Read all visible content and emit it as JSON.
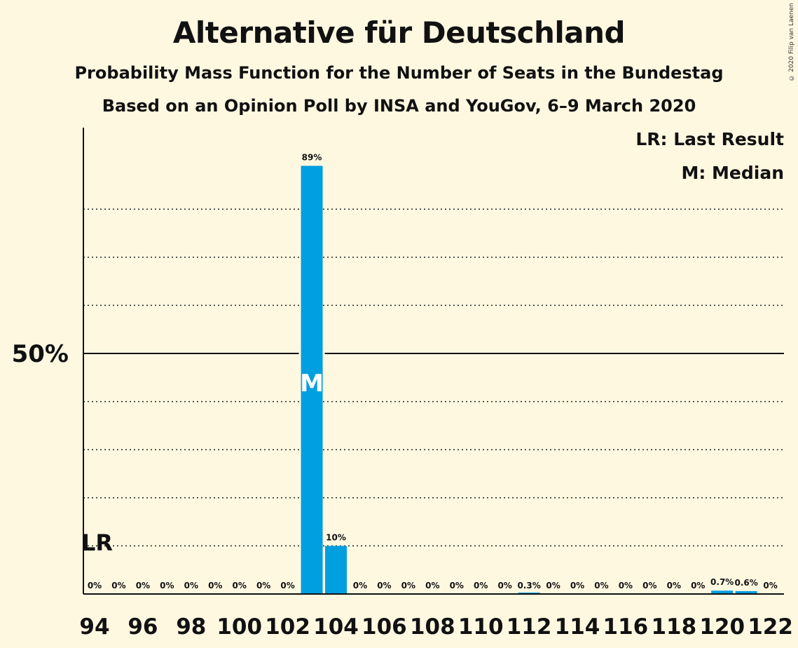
{
  "header": {
    "title": "Alternative für Deutschland",
    "subtitle1": "Probability Mass Function for the Number of Seats in the Bundestag",
    "subtitle2": "Based on an Opinion Poll by INSA and YouGov, 6–9 March 2020",
    "copyright": "© 2020 Filip van Laenen"
  },
  "legend": {
    "lr": "LR: Last Result",
    "median": "M: Median"
  },
  "chart_data": {
    "type": "bar",
    "x": [
      94,
      95,
      96,
      97,
      98,
      99,
      100,
      101,
      102,
      103,
      104,
      105,
      106,
      107,
      108,
      109,
      110,
      111,
      112,
      113,
      114,
      115,
      116,
      117,
      118,
      119,
      120,
      121,
      122
    ],
    "values": [
      0,
      0,
      0,
      0,
      0,
      0,
      0,
      0,
      0,
      89,
      10,
      0,
      0,
      0,
      0,
      0,
      0,
      0,
      0.3,
      0,
      0,
      0,
      0,
      0,
      0,
      0,
      0.7,
      0.6,
      0
    ],
    "labels": [
      "0%",
      "0%",
      "0%",
      "0%",
      "0%",
      "0%",
      "0%",
      "0%",
      "0%",
      "89%",
      "10%",
      "0%",
      "0%",
      "0%",
      "0%",
      "0%",
      "0%",
      "0%",
      "0.3%",
      "0%",
      "0%",
      "0%",
      "0%",
      "0%",
      "0%",
      "0%",
      "0.7%",
      "0.6%",
      "0%"
    ],
    "xticks": [
      94,
      96,
      98,
      100,
      102,
      104,
      106,
      108,
      110,
      112,
      114,
      116,
      118,
      120,
      122
    ],
    "ytick_label": "50%",
    "ylim": [
      0,
      97
    ],
    "gridlines": [
      10,
      20,
      30,
      40,
      60,
      70,
      80
    ],
    "reference_line": 50,
    "last_result_seat": 94,
    "last_result_label": "LR",
    "median_seat": 103,
    "median_label": "M",
    "bar_color": "#009fe0",
    "background": "#fff8e1"
  }
}
